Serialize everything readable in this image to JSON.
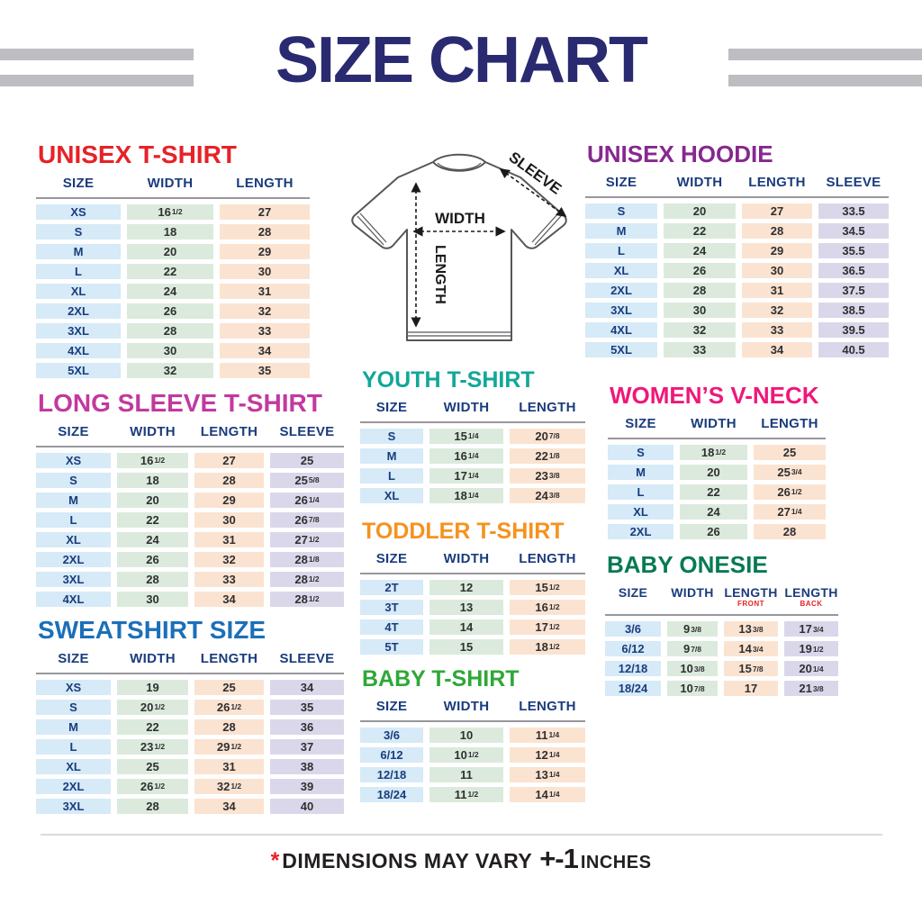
{
  "page": {
    "title": "SIZE CHART",
    "footer": {
      "asterisk": "*",
      "text": "DIMENSIONS MAY VARY",
      "tolerance": "+-1",
      "unit": "INCHES"
    }
  },
  "diagram": {
    "width_label": "WIDTH",
    "length_label": "LENGTH",
    "sleeve_label": "SLEEVE"
  },
  "colors": {
    "title_navy": "#2a2a71",
    "header_navy": "#1a3c7d",
    "bar_gray": "#bdbdc2",
    "cell_blue": "#d6eaf7",
    "cell_green": "#dbeadc",
    "cell_peach": "#fbe3d1",
    "cell_lavender": "#dbd7ea",
    "footer_red": "#e62228"
  },
  "tables": {
    "unisex_tshirt": {
      "title": "UNISEX T-SHIRT",
      "title_color": "#e62228",
      "headers": [
        "SIZE",
        "WIDTH",
        "LENGTH"
      ],
      "col_types": [
        "size",
        "width",
        "length"
      ],
      "rows": [
        [
          "XS",
          "16^1/2",
          "27"
        ],
        [
          "S",
          "18",
          "28"
        ],
        [
          "M",
          "20",
          "29"
        ],
        [
          "L",
          "22",
          "30"
        ],
        [
          "XL",
          "24",
          "31"
        ],
        [
          "2XL",
          "26",
          "32"
        ],
        [
          "3XL",
          "28",
          "33"
        ],
        [
          "4XL",
          "30",
          "34"
        ],
        [
          "5XL",
          "32",
          "35"
        ]
      ]
    },
    "unisex_hoodie": {
      "title": "UNISEX HOODIE",
      "title_color": "#86288f",
      "headers": [
        "SIZE",
        "WIDTH",
        "LENGTH",
        "SLEEVE"
      ],
      "col_types": [
        "size",
        "width",
        "length",
        "sleeve"
      ],
      "rows": [
        [
          "S",
          "20",
          "27",
          "33.5"
        ],
        [
          "M",
          "22",
          "28",
          "34.5"
        ],
        [
          "L",
          "24",
          "29",
          "35.5"
        ],
        [
          "XL",
          "26",
          "30",
          "36.5"
        ],
        [
          "2XL",
          "28",
          "31",
          "37.5"
        ],
        [
          "3XL",
          "30",
          "32",
          "38.5"
        ],
        [
          "4XL",
          "32",
          "33",
          "39.5"
        ],
        [
          "5XL",
          "33",
          "34",
          "40.5"
        ]
      ]
    },
    "long_sleeve_tshirt": {
      "title": "LONG SLEEVE T-SHIRT",
      "title_color": "#c2399f",
      "headers": [
        "SIZE",
        "WIDTH",
        "LENGTH",
        "SLEEVE"
      ],
      "col_types": [
        "size",
        "width",
        "length",
        "sleeve"
      ],
      "rows": [
        [
          "XS",
          "16^1/2",
          "27",
          "25"
        ],
        [
          "S",
          "18",
          "28",
          "25^5/8"
        ],
        [
          "M",
          "20",
          "29",
          "26^1/4"
        ],
        [
          "L",
          "22",
          "30",
          "26^7/8"
        ],
        [
          "XL",
          "24",
          "31",
          "27^1/2"
        ],
        [
          "2XL",
          "26",
          "32",
          "28^1/8"
        ],
        [
          "3XL",
          "28",
          "33",
          "28^1/2"
        ],
        [
          "4XL",
          "30",
          "34",
          "28^1/2"
        ]
      ]
    },
    "sweatshirt": {
      "title": "SWEATSHIRT SIZE",
      "title_color": "#1c6fb8",
      "headers": [
        "SIZE",
        "WIDTH",
        "LENGTH",
        "SLEEVE"
      ],
      "col_types": [
        "size",
        "width",
        "length",
        "sleeve"
      ],
      "rows": [
        [
          "XS",
          "19",
          "25",
          "34"
        ],
        [
          "S",
          "20^1/2",
          "26^1/2",
          "35"
        ],
        [
          "M",
          "22",
          "28",
          "36"
        ],
        [
          "L",
          "23^1/2",
          "29^1/2",
          "37"
        ],
        [
          "XL",
          "25",
          "31",
          "38"
        ],
        [
          "2XL",
          "26^1/2",
          "32^1/2",
          "39"
        ],
        [
          "3XL",
          "28",
          "34",
          "40"
        ]
      ]
    },
    "youth_tshirt": {
      "title": "YOUTH T-SHIRT",
      "title_color": "#12a79a",
      "headers": [
        "SIZE",
        "WIDTH",
        "LENGTH"
      ],
      "col_types": [
        "size",
        "width",
        "length"
      ],
      "rows": [
        [
          "S",
          "15^1/4",
          "20^7/8"
        ],
        [
          "M",
          "16^1/4",
          "22^1/8"
        ],
        [
          "L",
          "17^1/4",
          "23^3/8"
        ],
        [
          "XL",
          "18^1/4",
          "24^3/8"
        ]
      ]
    },
    "toddler_tshirt": {
      "title": "TODDLER T-SHIRT",
      "title_color": "#f6921e",
      "headers": [
        "SIZE",
        "WIDTH",
        "LENGTH"
      ],
      "col_types": [
        "size",
        "width",
        "length"
      ],
      "rows": [
        [
          "2T",
          "12",
          "15^1/2"
        ],
        [
          "3T",
          "13",
          "16^1/2"
        ],
        [
          "4T",
          "14",
          "17^1/2"
        ],
        [
          "5T",
          "15",
          "18^1/2"
        ]
      ]
    },
    "baby_tshirt": {
      "title": "BABY T-SHIRT",
      "title_color": "#2ea836",
      "headers": [
        "SIZE",
        "WIDTH",
        "LENGTH"
      ],
      "col_types": [
        "size",
        "width",
        "length"
      ],
      "rows": [
        [
          "3/6",
          "10",
          "11^1/4"
        ],
        [
          "6/12",
          "10^1/2",
          "12^1/4"
        ],
        [
          "12/18",
          "11",
          "13^1/4"
        ],
        [
          "18/24",
          "11^1/2",
          "14^1/4"
        ]
      ]
    },
    "womens_vneck": {
      "title": "WOMEN’S V-NECK",
      "title_color": "#ef1879",
      "headers": [
        "SIZE",
        "WIDTH",
        "LENGTH"
      ],
      "col_types": [
        "size",
        "width",
        "length"
      ],
      "rows": [
        [
          "S",
          "18^1/2",
          "25"
        ],
        [
          "M",
          "20",
          "25^3/4"
        ],
        [
          "L",
          "22",
          "26^1/2"
        ],
        [
          "XL",
          "24",
          "27^1/4"
        ],
        [
          "2XL",
          "26",
          "28"
        ]
      ]
    },
    "baby_onesie": {
      "title": "BABY ONESIE",
      "title_color": "#067a52",
      "headers": [
        "SIZE",
        "WIDTH",
        {
          "label": "LENGTH",
          "sub": "FRONT"
        },
        {
          "label": "LENGTH",
          "sub": "BACK"
        }
      ],
      "col_types": [
        "size",
        "width",
        "length-front",
        "length-back"
      ],
      "rows": [
        [
          "3/6",
          "9^3/8",
          "13^3/8",
          "17^3/4"
        ],
        [
          "6/12",
          "9^7/8",
          "14^3/4",
          "19^1/2"
        ],
        [
          "12/18",
          "10^3/8",
          "15^7/8",
          "20^1/4"
        ],
        [
          "18/24",
          "10^7/8",
          "17",
          "21^3/8"
        ]
      ]
    }
  }
}
